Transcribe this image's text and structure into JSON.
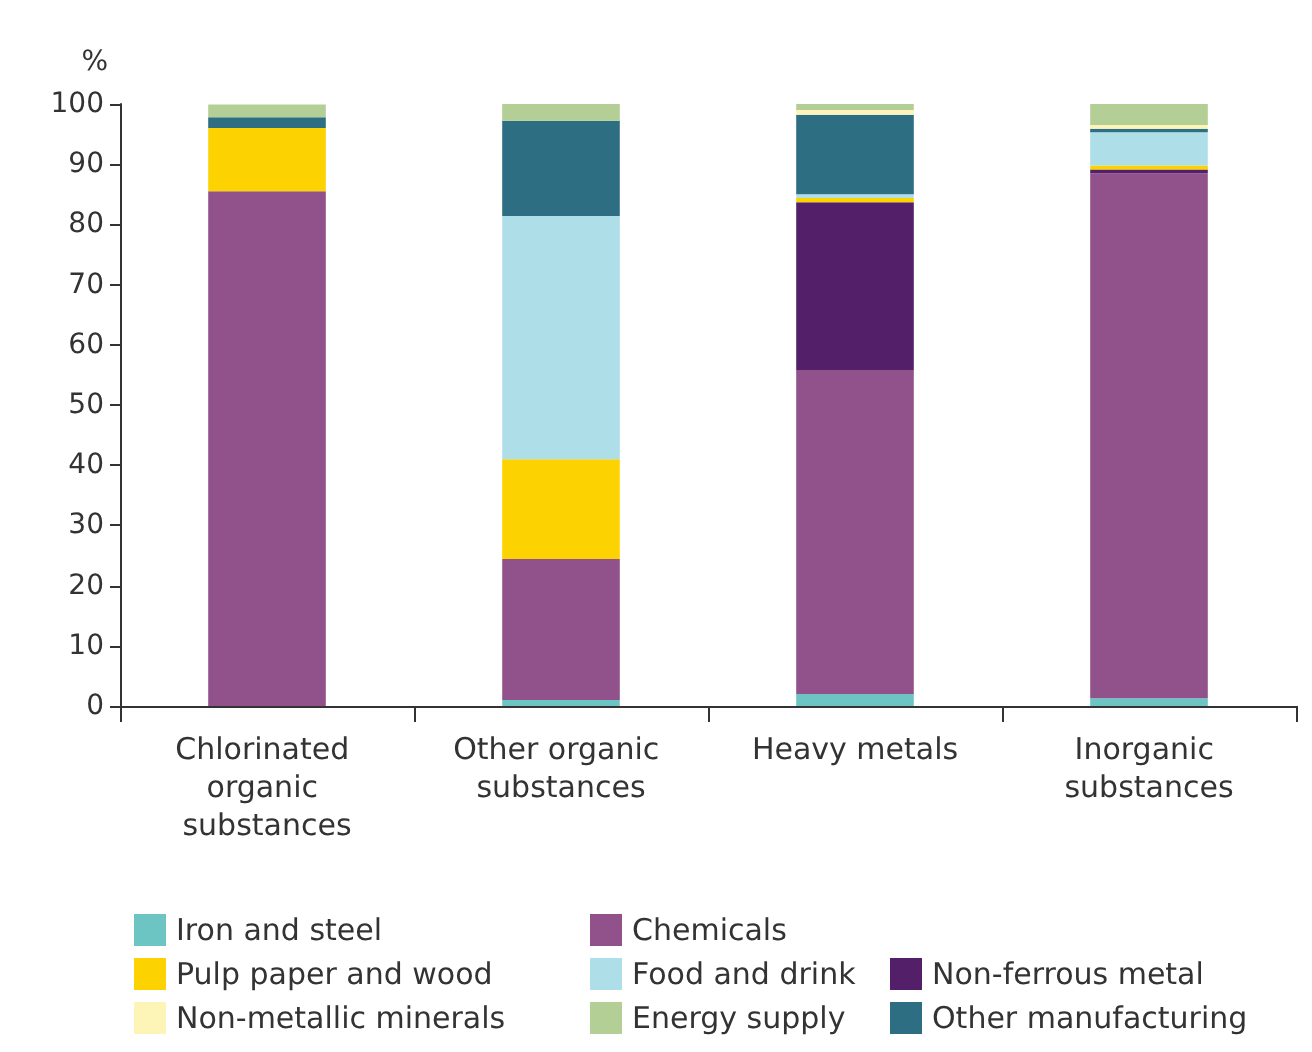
{
  "chart_data": {
    "type": "bar",
    "stacked": true,
    "ylabel": "%",
    "categories": [
      "Chlorinated organic substances",
      "Other organic substances",
      "Heavy metals",
      "Inorganic substances"
    ],
    "ylim": [
      0,
      100
    ],
    "yticks": [
      0,
      10,
      20,
      30,
      40,
      50,
      60,
      70,
      80,
      90,
      100
    ],
    "grid": false,
    "legend": "bottom",
    "series": [
      {
        "name": "Iron and steel",
        "color": "#6cc5c3",
        "values": [
          0,
          1.0,
          2.0,
          1.3
        ]
      },
      {
        "name": "Chemicals",
        "color": "#91518b",
        "values": [
          85.5,
          23.4,
          53.8,
          87.2
        ]
      },
      {
        "name": "Non-ferrous metal",
        "color": "#541f69",
        "values": [
          0,
          0,
          27.9,
          0.6
        ]
      },
      {
        "name": "Pulp paper and wood",
        "color": "#fcd200",
        "values": [
          10.5,
          16.6,
          0.7,
          0.7
        ]
      },
      {
        "name": "Food and drink",
        "color": "#aedfe8",
        "values": [
          0,
          40.4,
          0.6,
          5.5
        ]
      },
      {
        "name": "Other manufacturing",
        "color": "#2e6e82",
        "values": [
          1.8,
          15.8,
          13.2,
          0.6
        ]
      },
      {
        "name": "Non-metallic minerals",
        "color": "#fdf5b8",
        "values": [
          0,
          0,
          0.8,
          0.6
        ]
      },
      {
        "name": "Energy supply",
        "color": "#b3cf96",
        "values": [
          2.1,
          2.8,
          1.0,
          3.5
        ]
      }
    ]
  }
}
